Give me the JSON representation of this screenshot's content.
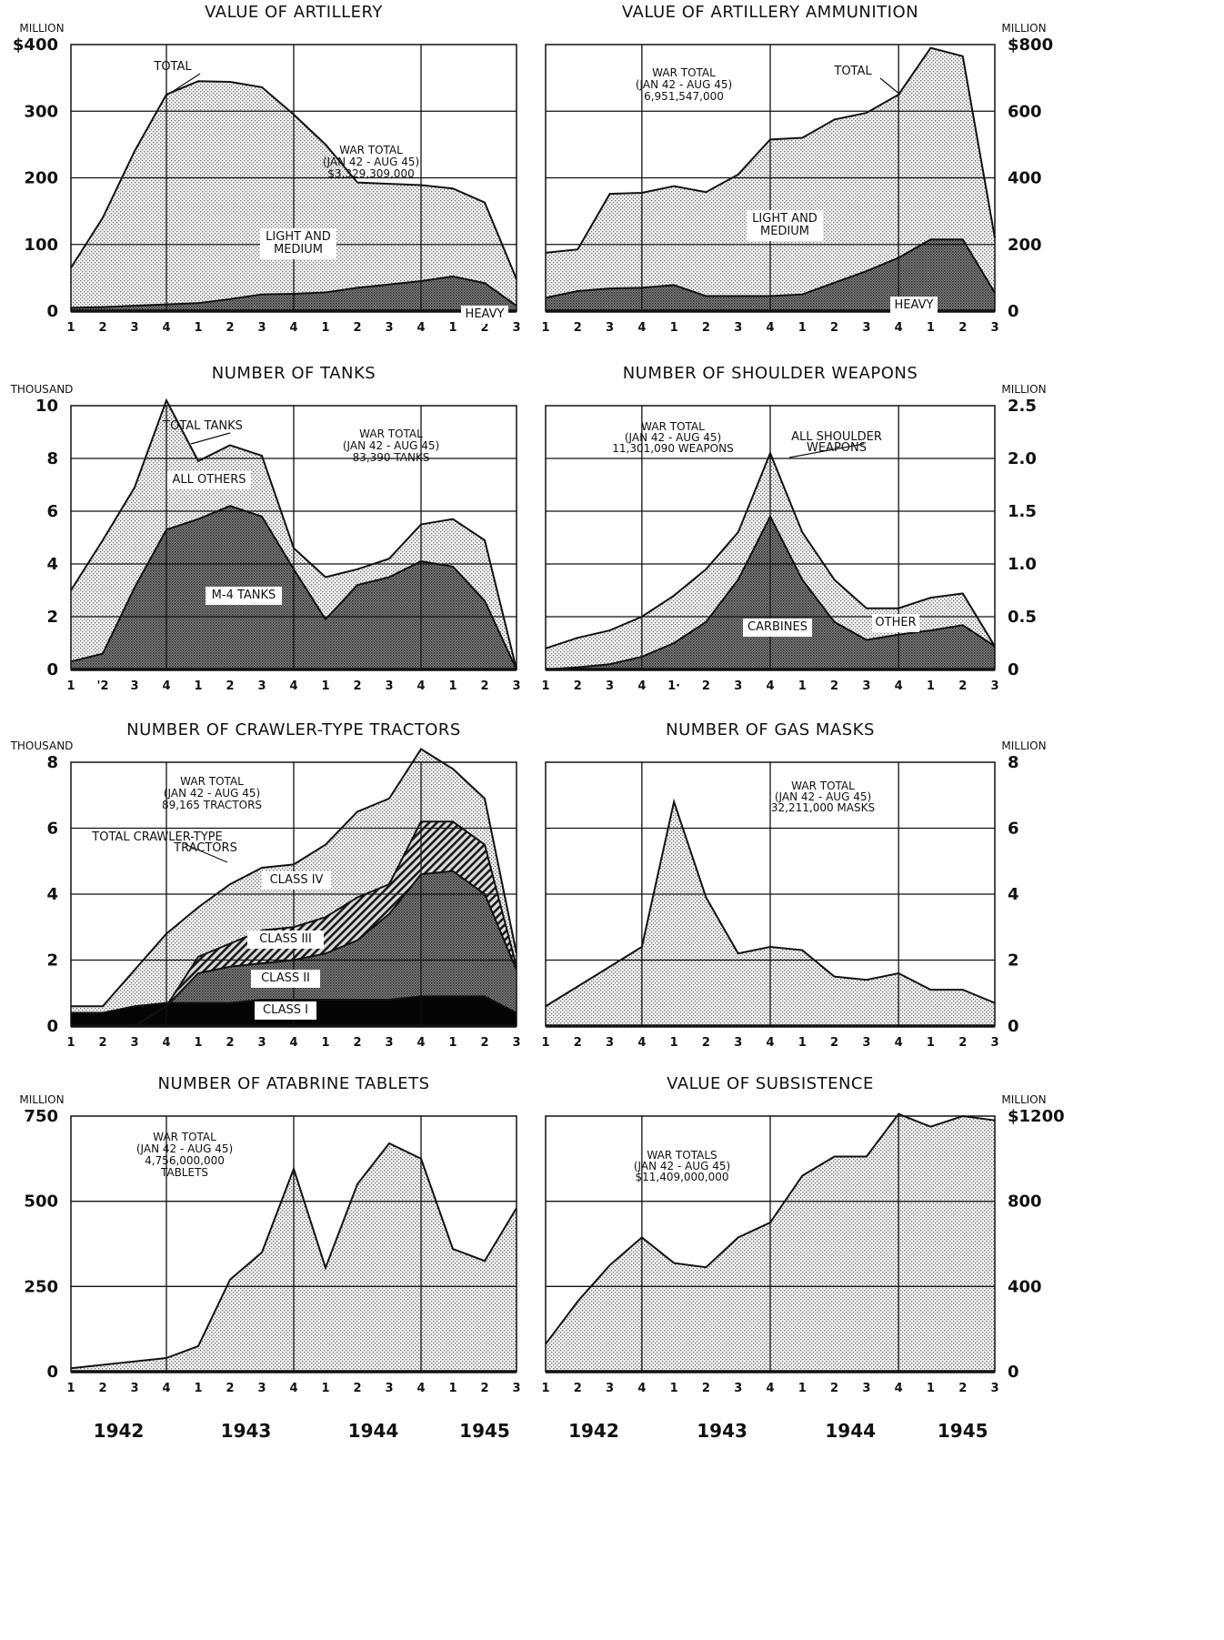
{
  "colors": {
    "light_fill": "#cfcfcf",
    "dark_fill": "#6f6f6f",
    "black_fill": "#050505",
    "hatch": "#222222",
    "ink": "#111111"
  },
  "year_labels": [
    "1942",
    "1943",
    "1944",
    "1945"
  ],
  "chart_data": [
    {
      "type": "area",
      "title": "VALUE OF ARTILLERY",
      "unit_top": "MILLION",
      "y_side": "left",
      "ylim": [
        0,
        400
      ],
      "yticks": [
        0,
        100,
        200,
        300,
        400
      ],
      "ytick_labels": [
        "0",
        "100",
        "200",
        "300",
        "$400"
      ],
      "xticks": [
        "1",
        "2",
        "3",
        "4",
        "1",
        "2",
        "3",
        "4",
        "1",
        "2",
        "3",
        "4",
        "1",
        "2",
        "3"
      ],
      "series": [
        {
          "name": "TOTAL",
          "fill": "light",
          "values": [
            65,
            140,
            240,
            325,
            345,
            344,
            336,
            295,
            250,
            193,
            191,
            189,
            184,
            163,
            48
          ]
        },
        {
          "name": "HEAVY",
          "fill": "dark",
          "values": [
            5,
            6,
            8,
            10,
            12,
            18,
            25,
            26,
            28,
            35,
            40,
            45,
            52,
            42,
            8
          ]
        }
      ],
      "region_labels": [
        {
          "lines": [
            "LIGHT AND",
            "MEDIUM"
          ]
        },
        {
          "lines": [
            "HEAVY"
          ]
        }
      ],
      "war_total": [
        "WAR TOTAL",
        "(JAN 42 - AUG 45)",
        "$3,329,309,000"
      ],
      "pointer_labels": [
        {
          "text": "TOTAL"
        }
      ],
      "grid": true
    },
    {
      "type": "area",
      "title": "VALUE OF ARTILLERY AMMUNITION",
      "unit_top": "MILLION",
      "y_side": "right",
      "ylim": [
        0,
        800
      ],
      "yticks": [
        0,
        200,
        400,
        600,
        800
      ],
      "ytick_labels": [
        "0",
        "200",
        "400",
        "600",
        "$800"
      ],
      "xticks": [
        "1",
        "2",
        "3",
        "4",
        "1",
        "2",
        "3",
        "4",
        "1",
        "2",
        "3",
        "4",
        "1",
        "2",
        "3"
      ],
      "series": [
        {
          "name": "TOTAL",
          "fill": "light",
          "values": [
            175,
            185,
            352,
            355,
            375,
            357,
            410,
            515,
            520,
            575,
            595,
            650,
            790,
            765,
            220
          ]
        },
        {
          "name": "HEAVY",
          "fill": "dark",
          "values": [
            40,
            60,
            68,
            70,
            78,
            45,
            45,
            45,
            50,
            85,
            120,
            160,
            215,
            215,
            55
          ]
        }
      ],
      "region_labels": [
        {
          "lines": [
            "LIGHT AND",
            "MEDIUM"
          ]
        },
        {
          "lines": [
            "HEAVY"
          ]
        }
      ],
      "war_total": [
        "WAR TOTAL",
        "(JAN 42 - AUG 45)",
        "6,951,547,000"
      ],
      "pointer_labels": [
        {
          "text": "TOTAL"
        }
      ],
      "grid": true
    },
    {
      "type": "area",
      "title": "NUMBER OF TANKS",
      "unit_top": "THOUSAND",
      "y_side": "left",
      "ylim": [
        0,
        10
      ],
      "yticks": [
        0,
        2,
        4,
        6,
        8,
        10
      ],
      "ytick_labels": [
        "0",
        "2",
        "4",
        "6",
        "8",
        "10"
      ],
      "xticks": [
        "1",
        "'2",
        "3",
        "4",
        "1",
        "2",
        "3",
        "4",
        "1",
        "2",
        "3",
        "4",
        "1",
        "2",
        "3"
      ],
      "series": [
        {
          "name": "TOTAL TANKS",
          "fill": "light",
          "values": [
            3.0,
            4.9,
            6.9,
            10.2,
            7.9,
            8.5,
            8.1,
            4.6,
            3.5,
            3.8,
            4.2,
            5.5,
            5.7,
            4.9,
            0.0
          ]
        },
        {
          "name": "M-4 TANKS",
          "fill": "dark",
          "values": [
            0.3,
            0.6,
            3.1,
            5.3,
            5.7,
            6.2,
            5.8,
            3.8,
            1.9,
            3.2,
            3.5,
            4.1,
            3.9,
            2.6,
            0.0
          ]
        }
      ],
      "region_labels": [
        {
          "lines": [
            "ALL OTHERS"
          ]
        },
        {
          "lines": [
            "M-4 TANKS"
          ]
        }
      ],
      "war_total": [
        "WAR TOTAL",
        "(JAN 42 - AUG 45)",
        "83,390 TANKS"
      ],
      "pointer_labels": [
        {
          "text": "TOTAL TANKS"
        }
      ],
      "grid": true
    },
    {
      "type": "area",
      "title": "NUMBER OF SHOULDER WEAPONS",
      "unit_top": "MILLION",
      "y_side": "right",
      "ylim": [
        0,
        2.5
      ],
      "yticks": [
        0,
        0.5,
        1.0,
        1.5,
        2.0,
        2.5
      ],
      "ytick_labels": [
        "0",
        "0.5",
        "1.0",
        "1.5",
        "2.0",
        "2.5"
      ],
      "xticks": [
        "1",
        "2",
        "3",
        "4",
        "1·",
        "2",
        "3",
        "4",
        "1",
        "2",
        "3",
        "4",
        "1",
        "2",
        "3"
      ],
      "series": [
        {
          "name": "ALL SHOULDER WEAPONS",
          "fill": "light",
          "values": [
            0.2,
            0.3,
            0.37,
            0.5,
            0.7,
            0.95,
            1.3,
            2.05,
            1.3,
            0.85,
            0.58,
            0.58,
            0.68,
            0.72,
            0.22
          ]
        },
        {
          "name": "CARBINES",
          "fill": "dark",
          "values": [
            0.0,
            0.02,
            0.05,
            0.12,
            0.25,
            0.45,
            0.85,
            1.45,
            0.85,
            0.45,
            0.28,
            0.33,
            0.37,
            0.42,
            0.22
          ]
        }
      ],
      "region_labels": [
        {
          "lines": [
            "CARBINES"
          ]
        },
        {
          "lines": [
            "OTHER"
          ]
        }
      ],
      "war_total": [
        "WAR TOTAL",
        "(JAN 42 - AUG 45)",
        "11,301,090 WEAPONS"
      ],
      "pointer_labels": [
        {
          "text": "ALL SHOULDER"
        },
        {
          "text": "WEAPONS"
        }
      ],
      "grid": true
    },
    {
      "type": "area",
      "title": "NUMBER OF CRAWLER-TYPE TRACTORS",
      "unit_top": "THOUSAND",
      "y_side": "left",
      "ylim": [
        0,
        8
      ],
      "yticks": [
        0,
        2,
        4,
        6,
        8
      ],
      "ytick_labels": [
        "0",
        "2",
        "4",
        "6",
        "8"
      ],
      "xticks": [
        "1",
        "2",
        "3",
        "4",
        "1",
        "2",
        "3",
        "4",
        "1",
        "2",
        "3",
        "4",
        "1",
        "2",
        "3"
      ],
      "series": [
        {
          "name": "TOTAL CRAWLER-TYPE TRACTORS",
          "fill": "light",
          "values": [
            0.6,
            0.6,
            1.7,
            2.8,
            3.6,
            4.3,
            4.8,
            4.9,
            5.5,
            6.5,
            6.9,
            8.4,
            7.8,
            6.9,
            2.2
          ]
        },
        {
          "name": "CLASS III",
          "fill": "hatch",
          "values": [
            0.0,
            0.0,
            0.0,
            0.6,
            2.1,
            2.5,
            2.9,
            3.0,
            3.3,
            3.9,
            4.3,
            6.2,
            6.2,
            5.5,
            1.8
          ]
        },
        {
          "name": "CLASS II",
          "fill": "dark",
          "values": [
            0.0,
            0.0,
            0.0,
            0.6,
            1.6,
            1.8,
            1.9,
            2.0,
            2.2,
            2.6,
            3.4,
            4.6,
            4.7,
            4.0,
            1.7
          ]
        },
        {
          "name": "CLASS I",
          "fill": "black",
          "values": [
            0.4,
            0.4,
            0.6,
            0.7,
            0.7,
            0.7,
            0.8,
            0.8,
            0.8,
            0.8,
            0.8,
            0.9,
            0.9,
            0.9,
            0.4
          ]
        }
      ],
      "region_labels": [
        {
          "lines": [
            "CLASS IV"
          ]
        },
        {
          "lines": [
            "CLASS III"
          ]
        },
        {
          "lines": [
            "CLASS II"
          ]
        },
        {
          "lines": [
            "CLASS I"
          ]
        }
      ],
      "war_total": [
        "WAR TOTAL",
        "(JAN 42 - AUG 45)",
        "89,165 TRACTORS"
      ],
      "pointer_labels": [
        {
          "text": "TOTAL CRAWLER-TYPE"
        },
        {
          "text": "TRACTORS"
        }
      ],
      "grid": true
    },
    {
      "type": "area",
      "title": "NUMBER OF GAS MASKS",
      "unit_top": "MILLION",
      "y_side": "right",
      "ylim": [
        0,
        8
      ],
      "yticks": [
        0,
        2,
        4,
        6,
        8
      ],
      "ytick_labels": [
        "0",
        "2",
        "4",
        "6",
        "8"
      ],
      "xticks": [
        "1",
        "2",
        "3",
        "4",
        "1",
        "2",
        "3",
        "4",
        "1",
        "2",
        "3",
        "4",
        "1",
        "2",
        "3"
      ],
      "series": [
        {
          "name": "GAS MASKS",
          "fill": "light",
          "values": [
            0.6,
            1.2,
            1.8,
            2.4,
            6.8,
            3.9,
            2.2,
            2.4,
            2.3,
            1.5,
            1.4,
            1.6,
            1.1,
            1.1,
            0.7
          ]
        }
      ],
      "region_labels": [],
      "war_total": [
        "WAR TOTAL",
        "(JAN 42 - AUG 45)",
        "32,211,000 MASKS"
      ],
      "pointer_labels": [],
      "grid": true
    },
    {
      "type": "area",
      "title": "NUMBER OF ATABRINE TABLETS",
      "unit_top": "MILLION",
      "y_side": "left",
      "ylim": [
        0,
        750
      ],
      "yticks": [
        0,
        250,
        500,
        750
      ],
      "ytick_labels": [
        "0",
        "250",
        "500",
        "750"
      ],
      "xticks": [
        "1",
        "2",
        "3",
        "4",
        "1",
        "2",
        "3",
        "4",
        "1",
        "2",
        "3",
        "4",
        "1",
        "2",
        "3"
      ],
      "series": [
        {
          "name": "ATABRINE TABLETS",
          "fill": "light",
          "values": [
            10,
            20,
            30,
            40,
            75,
            270,
            350,
            595,
            305,
            550,
            670,
            625,
            360,
            325,
            480
          ]
        }
      ],
      "region_labels": [],
      "war_total": [
        "WAR TOTAL",
        "(JAN 42 - AUG 45)",
        "4,756,000,000",
        "TABLETS"
      ],
      "pointer_labels": [],
      "grid": true
    },
    {
      "type": "area",
      "title": "VALUE OF SUBSISTENCE",
      "unit_top": "MILLION",
      "y_side": "right",
      "ylim": [
        0,
        1200
      ],
      "yticks": [
        0,
        400,
        800,
        1200
      ],
      "ytick_labels": [
        "0",
        "400",
        "800",
        "$1200"
      ],
      "xticks": [
        "1",
        "2",
        "3",
        "4",
        "1",
        "2",
        "3",
        "4",
        "1",
        "2",
        "3",
        "4",
        "1",
        "2",
        "3"
      ],
      "series": [
        {
          "name": "SUBSISTENCE",
          "fill": "light",
          "values": [
            130,
            330,
            500,
            630,
            510,
            490,
            630,
            700,
            920,
            1010,
            1010,
            1210,
            1150,
            1200,
            1180
          ]
        }
      ],
      "region_labels": [],
      "war_total": [
        "WAR TOTALS",
        "(JAN 42 - AUG 45)",
        "$11,409,000,000"
      ],
      "pointer_labels": [],
      "grid": true
    }
  ]
}
